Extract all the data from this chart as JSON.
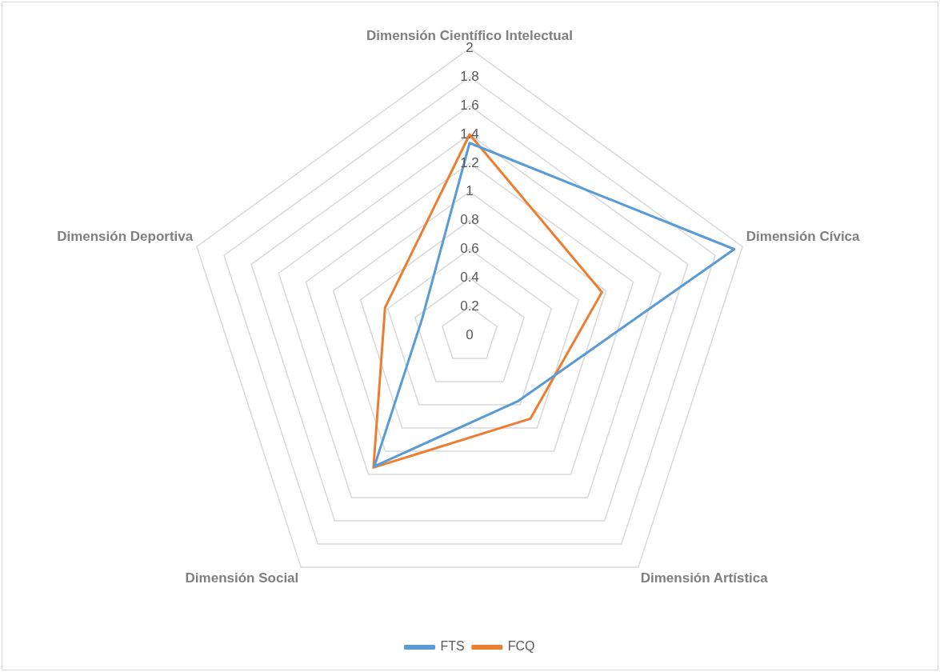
{
  "chart_data": {
    "type": "radar",
    "categories": [
      "Dimensión Científico Intelectual",
      "Dimensión Cívica",
      "Dimensión Artística",
      "Dimensión Social",
      "Dimensión Deportiva"
    ],
    "series": [
      {
        "name": "FTS",
        "color": "#5b9bd5",
        "values": [
          1.34,
          1.94,
          0.57,
          1.13,
          0.35
        ]
      },
      {
        "name": "FCQ",
        "color": "#ed7d31",
        "values": [
          1.4,
          0.97,
          0.72,
          1.14,
          0.62
        ]
      }
    ],
    "ylim": [
      0,
      2
    ],
    "yticks": [
      0,
      0.2,
      0.4,
      0.6,
      0.8,
      1,
      1.2,
      1.4,
      1.6,
      1.8,
      2
    ],
    "grid": true,
    "legend": "bottom",
    "marker": "none"
  }
}
